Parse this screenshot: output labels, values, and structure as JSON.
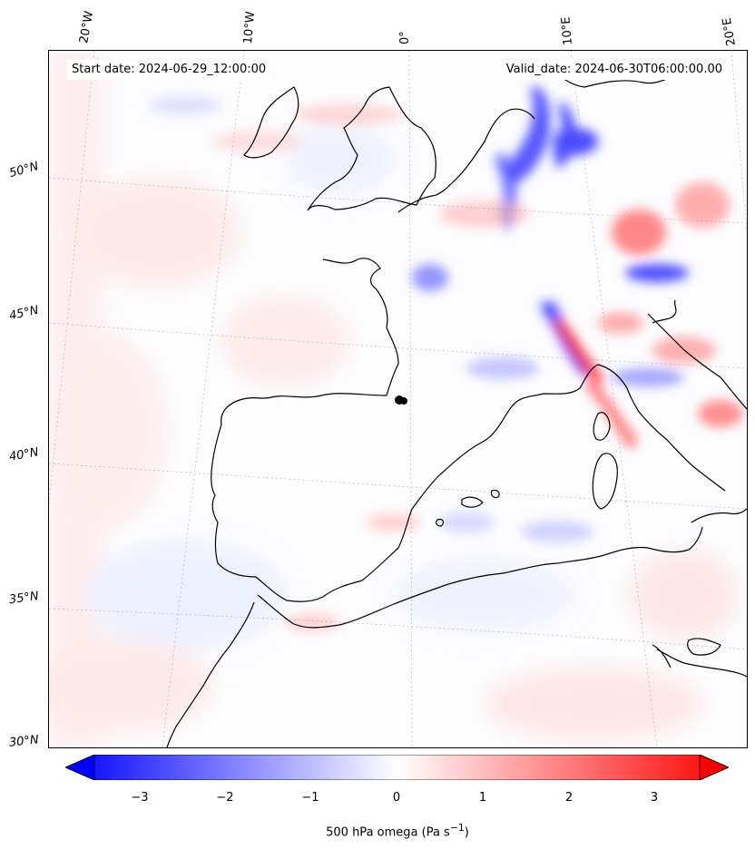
{
  "header": {
    "start_label": "Start date: 2024-06-29_12:00:00",
    "valid_label": "Valid_date: 2024-06-30T06:00:00.00"
  },
  "axes": {
    "longitude_labels": [
      "20°W",
      "10°W",
      "0°",
      "10°E",
      "20°E"
    ],
    "latitude_labels": [
      "50°N",
      "45°N",
      "40°N",
      "35°N",
      "30°N"
    ]
  },
  "colorbar": {
    "title": "500 hPa omega (Pa s",
    "title_sup": "−1",
    "title_end": ")",
    "ticks": [
      "−3",
      "−2",
      "−1",
      "0",
      "1",
      "2",
      "3"
    ],
    "range": [
      -3.6,
      3.6
    ],
    "colormap": "bwr",
    "colors": {
      "negative": "#0000ff",
      "zero": "#ffffff",
      "positive": "#ff0000"
    },
    "extend": "both"
  },
  "map": {
    "projection": "Lambert conformal",
    "coastline_color": "#000000",
    "gridline_style": "dotted"
  }
}
